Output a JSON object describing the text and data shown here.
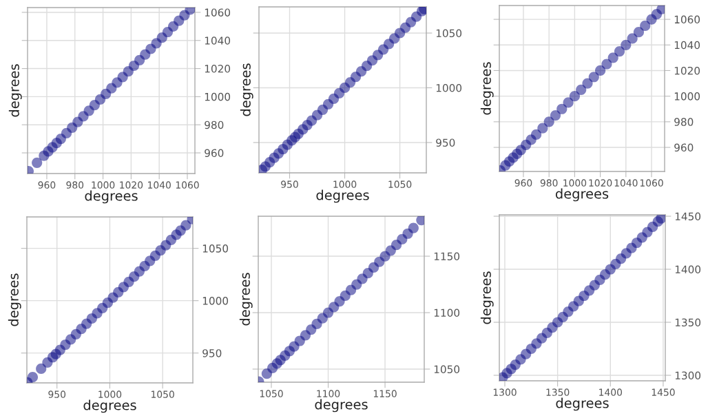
{
  "chart_data": [
    {
      "type": "scatter",
      "xlabel": "degrees",
      "ylabel": "degrees",
      "color": "#000080",
      "grid": true,
      "marker": "circle",
      "xlim": [
        946.3,
        1065.4
      ],
      "ylim": [
        945.3,
        1063.4
      ],
      "xticks": [
        960,
        980,
        1000,
        1020,
        1040,
        1060
      ],
      "yticks": [
        960,
        980,
        1000,
        1020,
        1040,
        1060
      ],
      "x": [
        947,
        953,
        958,
        961,
        964,
        967,
        970,
        974,
        978,
        982,
        986,
        990,
        994,
        998,
        1002,
        1006,
        1010,
        1014,
        1018,
        1022,
        1026,
        1030,
        1034,
        1038,
        1042,
        1046,
        1050,
        1054,
        1058,
        1062
      ],
      "values": [
        947,
        953,
        958,
        961,
        964,
        967,
        970,
        974,
        978,
        982,
        986,
        990,
        994,
        998,
        1002,
        1006,
        1010,
        1014,
        1018,
        1022,
        1026,
        1030,
        1034,
        1038,
        1042,
        1046,
        1050,
        1054,
        1058,
        1062
      ]
    },
    {
      "type": "scatter",
      "xlabel": "degrees",
      "ylabel": "degrees",
      "color": "#000080",
      "grid": true,
      "marker": "circle",
      "xlim": [
        922.2,
        1074
      ],
      "ylim": [
        922.3,
        1073.9
      ],
      "xticks": [
        950,
        1000,
        1050
      ],
      "yticks": [
        950,
        1000,
        1050
      ],
      "x": [
        925,
        928,
        932,
        936,
        940,
        944,
        948,
        952,
        955,
        958,
        962,
        966,
        970,
        975,
        980,
        985,
        990,
        995,
        1000,
        1005,
        1010,
        1015,
        1020,
        1025,
        1030,
        1035,
        1040,
        1045,
        1050,
        1055,
        1060,
        1065,
        1070,
        1072
      ],
      "values": [
        925,
        928,
        932,
        936,
        940,
        944,
        948,
        952,
        955,
        958,
        962,
        966,
        970,
        975,
        980,
        985,
        990,
        995,
        1000,
        1005,
        1010,
        1015,
        1020,
        1025,
        1030,
        1035,
        1040,
        1045,
        1050,
        1055,
        1060,
        1065,
        1070,
        1072
      ]
    },
    {
      "type": "scatter",
      "xlabel": "degrees",
      "ylabel": "degrees",
      "color": "#000080",
      "grid": true,
      "marker": "circle",
      "xlim": [
        941.2,
        1070.2
      ],
      "ylim": [
        941.2,
        1070.8
      ],
      "xticks": [
        960,
        980,
        1000,
        1020,
        1040,
        1060
      ],
      "yticks": [
        960,
        980,
        1000,
        1020,
        1040,
        1060
      ],
      "x": [
        942,
        946,
        949,
        952,
        955,
        958,
        962,
        966,
        970,
        975,
        980,
        985,
        990,
        995,
        1000,
        1005,
        1010,
        1015,
        1020,
        1025,
        1030,
        1035,
        1040,
        1045,
        1050,
        1055,
        1060,
        1064,
        1068
      ],
      "values": [
        942,
        946,
        949,
        952,
        955,
        958,
        962,
        966,
        970,
        975,
        980,
        985,
        990,
        995,
        1000,
        1005,
        1010,
        1015,
        1020,
        1025,
        1030,
        1035,
        1040,
        1045,
        1050,
        1055,
        1060,
        1064,
        1068
      ]
    },
    {
      "type": "scatter",
      "xlabel": "degrees",
      "ylabel": "degrees",
      "color": "#000080",
      "grid": true,
      "marker": "circle",
      "xlim": [
        921.5,
        1078.6
      ],
      "ylim": [
        921.5,
        1080
      ],
      "xticks": [
        950,
        1000,
        1050
      ],
      "yticks": [
        950,
        1000,
        1050
      ],
      "x": [
        922,
        927,
        935,
        941,
        946,
        949,
        953,
        958,
        963,
        968,
        973,
        978,
        983,
        988,
        993,
        998,
        1003,
        1008,
        1013,
        1018,
        1023,
        1028,
        1033,
        1038,
        1043,
        1048,
        1053,
        1058,
        1063,
        1067,
        1072,
        1078
      ],
      "values": [
        922,
        927,
        935,
        941,
        946,
        949,
        953,
        958,
        963,
        968,
        973,
        978,
        983,
        988,
        993,
        998,
        1003,
        1008,
        1013,
        1018,
        1023,
        1028,
        1033,
        1038,
        1043,
        1048,
        1053,
        1058,
        1063,
        1067,
        1072,
        1078
      ]
    },
    {
      "type": "scatter",
      "xlabel": "degrees",
      "ylabel": "degrees",
      "color": "#000080",
      "grid": true,
      "marker": "circle",
      "xlim": [
        1038.5,
        1184.5
      ],
      "ylim": [
        1038.4,
        1185.4
      ],
      "xticks": [
        1050,
        1100,
        1150
      ],
      "yticks": [
        1050,
        1100,
        1150
      ],
      "x": [
        1039,
        1046,
        1051,
        1055,
        1058,
        1062,
        1066,
        1070,
        1075,
        1080,
        1085,
        1090,
        1095,
        1100,
        1105,
        1110,
        1115,
        1120,
        1125,
        1130,
        1135,
        1140,
        1145,
        1150,
        1155,
        1160,
        1165,
        1170,
        1175,
        1182
      ],
      "values": [
        1039,
        1046,
        1051,
        1055,
        1058,
        1062,
        1066,
        1070,
        1075,
        1080,
        1085,
        1090,
        1095,
        1100,
        1105,
        1110,
        1115,
        1120,
        1125,
        1130,
        1135,
        1140,
        1145,
        1150,
        1155,
        1160,
        1165,
        1170,
        1175,
        1182
      ]
    },
    {
      "type": "scatter",
      "xlabel": "degrees",
      "ylabel": "degrees",
      "color": "#000080",
      "grid": true,
      "marker": "circle",
      "xlim": [
        1294.8,
        1452
      ],
      "ylim": [
        1294.8,
        1451.3
      ],
      "xticks": [
        1300,
        1350,
        1400,
        1450
      ],
      "yticks": [
        1300,
        1350,
        1400,
        1450
      ],
      "x": [
        1298,
        1302,
        1306,
        1310,
        1315,
        1320,
        1325,
        1330,
        1335,
        1340,
        1345,
        1350,
        1355,
        1360,
        1365,
        1370,
        1375,
        1380,
        1385,
        1390,
        1395,
        1400,
        1405,
        1410,
        1415,
        1420,
        1425,
        1430,
        1435,
        1440,
        1445,
        1448
      ],
      "values": [
        1298,
        1302,
        1306,
        1310,
        1315,
        1320,
        1325,
        1330,
        1335,
        1340,
        1345,
        1350,
        1355,
        1360,
        1365,
        1370,
        1375,
        1380,
        1385,
        1390,
        1395,
        1400,
        1405,
        1410,
        1415,
        1420,
        1425,
        1430,
        1435,
        1440,
        1445,
        1448
      ]
    }
  ]
}
